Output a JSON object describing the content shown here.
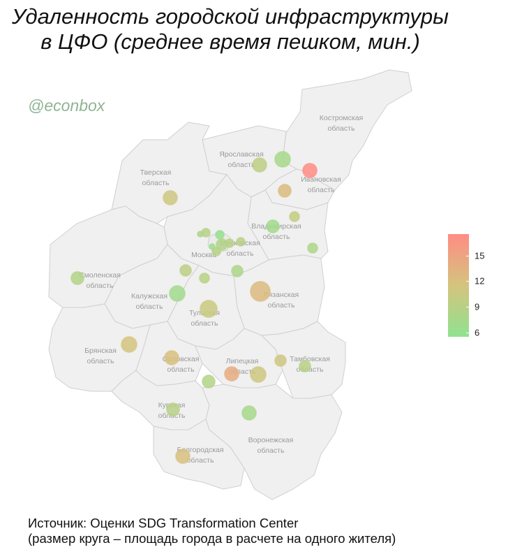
{
  "title": {
    "line1": "Удаленность городской инфраструктуры",
    "line2": "в ЦФО (среднее время пешком, мин.)"
  },
  "watermark": "@econbox",
  "regions": [
    {
      "id": "kostroma",
      "line1": "Костромская",
      "line2": "область"
    },
    {
      "id": "yaroslavl",
      "line1": "Ярославская",
      "line2": "область"
    },
    {
      "id": "tver",
      "line1": "Тверская",
      "line2": "область"
    },
    {
      "id": "ivanovo",
      "line1": "Ивановская",
      "line2": "область"
    },
    {
      "id": "vladimir",
      "line1": "Владимирская",
      "line2": "область"
    },
    {
      "id": "moscow-oblast",
      "line1": "Московская",
      "line2": "область"
    },
    {
      "id": "moscow",
      "line1": "Москва",
      "line2": ""
    },
    {
      "id": "smolensk",
      "line1": "Смоленская",
      "line2": "область"
    },
    {
      "id": "kaluga",
      "line1": "Калужская",
      "line2": "область"
    },
    {
      "id": "ryazan",
      "line1": "Рязанская",
      "line2": "область"
    },
    {
      "id": "tula",
      "line1": "Тульская",
      "line2": "область"
    },
    {
      "id": "bryansk",
      "line1": "Брянская",
      "line2": "область"
    },
    {
      "id": "orel",
      "line1": "Орловская",
      "line2": "область"
    },
    {
      "id": "lipetsk",
      "line1": "Липецкая",
      "line2": "область"
    },
    {
      "id": "tambov",
      "line1": "Тамбовская",
      "line2": "область"
    },
    {
      "id": "kursk",
      "line1": "Курская",
      "line2": "область"
    },
    {
      "id": "voronezh",
      "line1": "Воронежская",
      "line2": "область"
    },
    {
      "id": "belgorod",
      "line1": "Белгородская",
      "line2": "область"
    }
  ],
  "legend": {
    "min": 5.5,
    "max": 17.5,
    "ticks": [
      {
        "value": 15,
        "label": "15"
      },
      {
        "value": 12,
        "label": "12"
      },
      {
        "value": 9,
        "label": "9"
      },
      {
        "value": 6,
        "label": "6"
      }
    ],
    "colors": {
      "low": "#90e290",
      "mid": "#d4c47e",
      "high": "#ff8c84"
    }
  },
  "footer": {
    "line1": "Источник: Оценки SDG Transformation Center",
    "line2": "(размер круга – площадь города в расчете на одного жителя)"
  }
}
